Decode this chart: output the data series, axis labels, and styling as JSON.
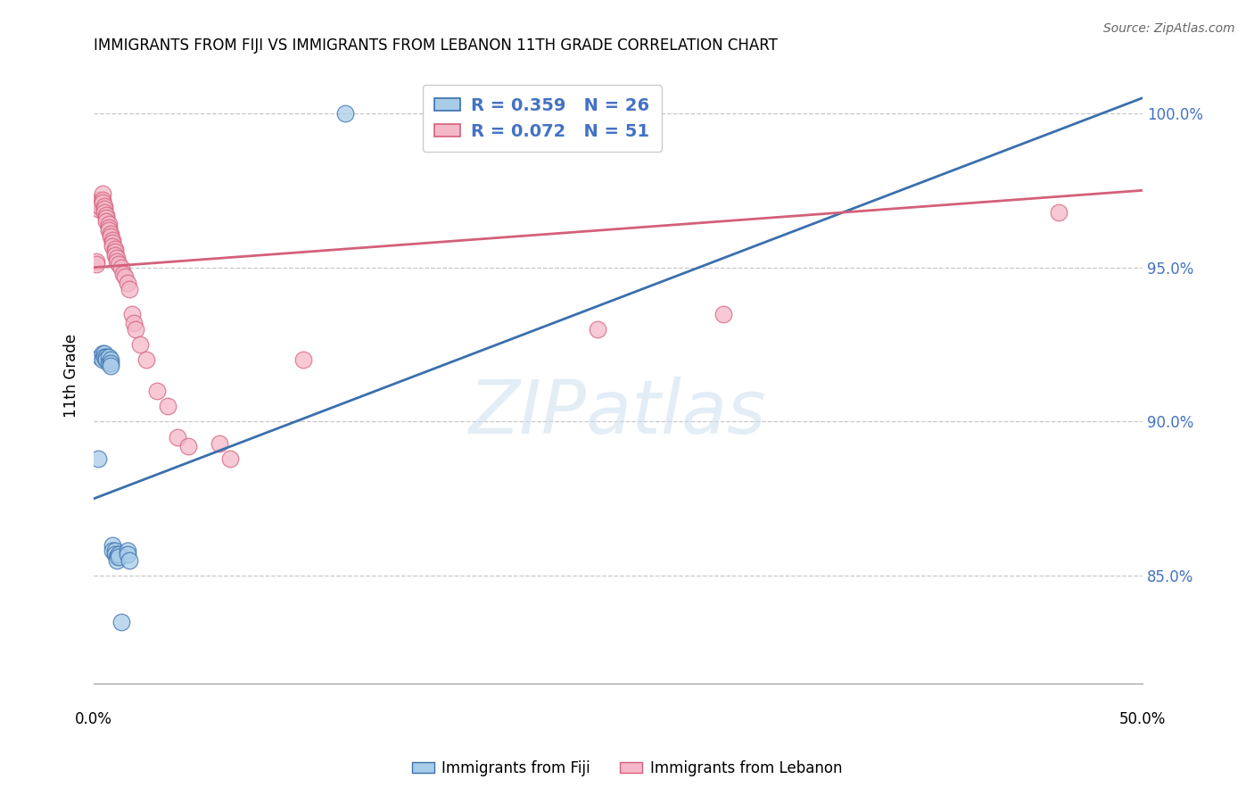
{
  "title": "IMMIGRANTS FROM FIJI VS IMMIGRANTS FROM LEBANON 11TH GRADE CORRELATION CHART",
  "source": "Source: ZipAtlas.com",
  "ylabel": "11th Grade",
  "ytick_labels": [
    "100.0%",
    "95.0%",
    "90.0%",
    "85.0%"
  ],
  "ytick_values": [
    1.0,
    0.95,
    0.9,
    0.85
  ],
  "xlim": [
    0.0,
    0.5
  ],
  "ylim": [
    0.815,
    1.015
  ],
  "fiji_color": "#a8cce8",
  "lebanon_color": "#f4b8c8",
  "fiji_R": 0.359,
  "fiji_N": 26,
  "lebanon_R": 0.072,
  "lebanon_N": 51,
  "fiji_line_color": "#3a6fad",
  "lebanon_line_color": "#d4607a",
  "background_color": "#ffffff",
  "grid_color": "#c8c8c8",
  "fiji_points_x": [
    0.002,
    0.003,
    0.004,
    0.004,
    0.005,
    0.005,
    0.006,
    0.006,
    0.007,
    0.007,
    0.008,
    0.008,
    0.008,
    0.009,
    0.009,
    0.01,
    0.01,
    0.011,
    0.011,
    0.012,
    0.012,
    0.013,
    0.016,
    0.016,
    0.017,
    0.12
  ],
  "fiji_points_y": [
    0.888,
    0.921,
    0.922,
    0.92,
    0.922,
    0.921,
    0.921,
    0.92,
    0.921,
    0.919,
    0.92,
    0.919,
    0.918,
    0.86,
    0.858,
    0.858,
    0.857,
    0.856,
    0.855,
    0.857,
    0.856,
    0.835,
    0.858,
    0.857,
    0.855,
    1.0
  ],
  "lebanon_points_x": [
    0.001,
    0.001,
    0.002,
    0.002,
    0.003,
    0.003,
    0.003,
    0.004,
    0.004,
    0.004,
    0.005,
    0.005,
    0.005,
    0.006,
    0.006,
    0.006,
    0.007,
    0.007,
    0.007,
    0.008,
    0.008,
    0.009,
    0.009,
    0.009,
    0.01,
    0.01,
    0.01,
    0.011,
    0.011,
    0.012,
    0.013,
    0.014,
    0.015,
    0.016,
    0.017,
    0.018,
    0.019,
    0.02,
    0.022,
    0.025,
    0.03,
    0.035,
    0.04,
    0.045,
    0.06,
    0.065,
    0.1,
    0.165,
    0.24,
    0.3,
    0.46
  ],
  "lebanon_points_y": [
    0.952,
    0.951,
    0.97,
    0.969,
    0.972,
    0.971,
    0.97,
    0.974,
    0.972,
    0.971,
    0.97,
    0.969,
    0.968,
    0.967,
    0.966,
    0.965,
    0.964,
    0.963,
    0.962,
    0.961,
    0.96,
    0.959,
    0.958,
    0.957,
    0.956,
    0.955,
    0.954,
    0.953,
    0.952,
    0.951,
    0.95,
    0.948,
    0.947,
    0.945,
    0.943,
    0.935,
    0.932,
    0.93,
    0.925,
    0.92,
    0.91,
    0.905,
    0.895,
    0.892,
    0.893,
    0.888,
    0.92,
    1.0,
    0.93,
    0.935,
    0.968
  ],
  "fiji_line_x0": 0.0,
  "fiji_line_y0": 0.875,
  "fiji_line_x1": 0.5,
  "fiji_line_y1": 1.005,
  "lebanon_line_x0": 0.0,
  "lebanon_line_y0": 0.95,
  "lebanon_line_x1": 0.5,
  "lebanon_line_y1": 0.975,
  "legend_fiji_label": "R = 0.359   N = 26",
  "legend_lebanon_label": "R = 0.072   N = 51",
  "watermark": "ZIPatlas",
  "bottom_legend_fiji": "Immigrants from Fiji",
  "bottom_legend_lebanon": "Immigrants from Lebanon"
}
